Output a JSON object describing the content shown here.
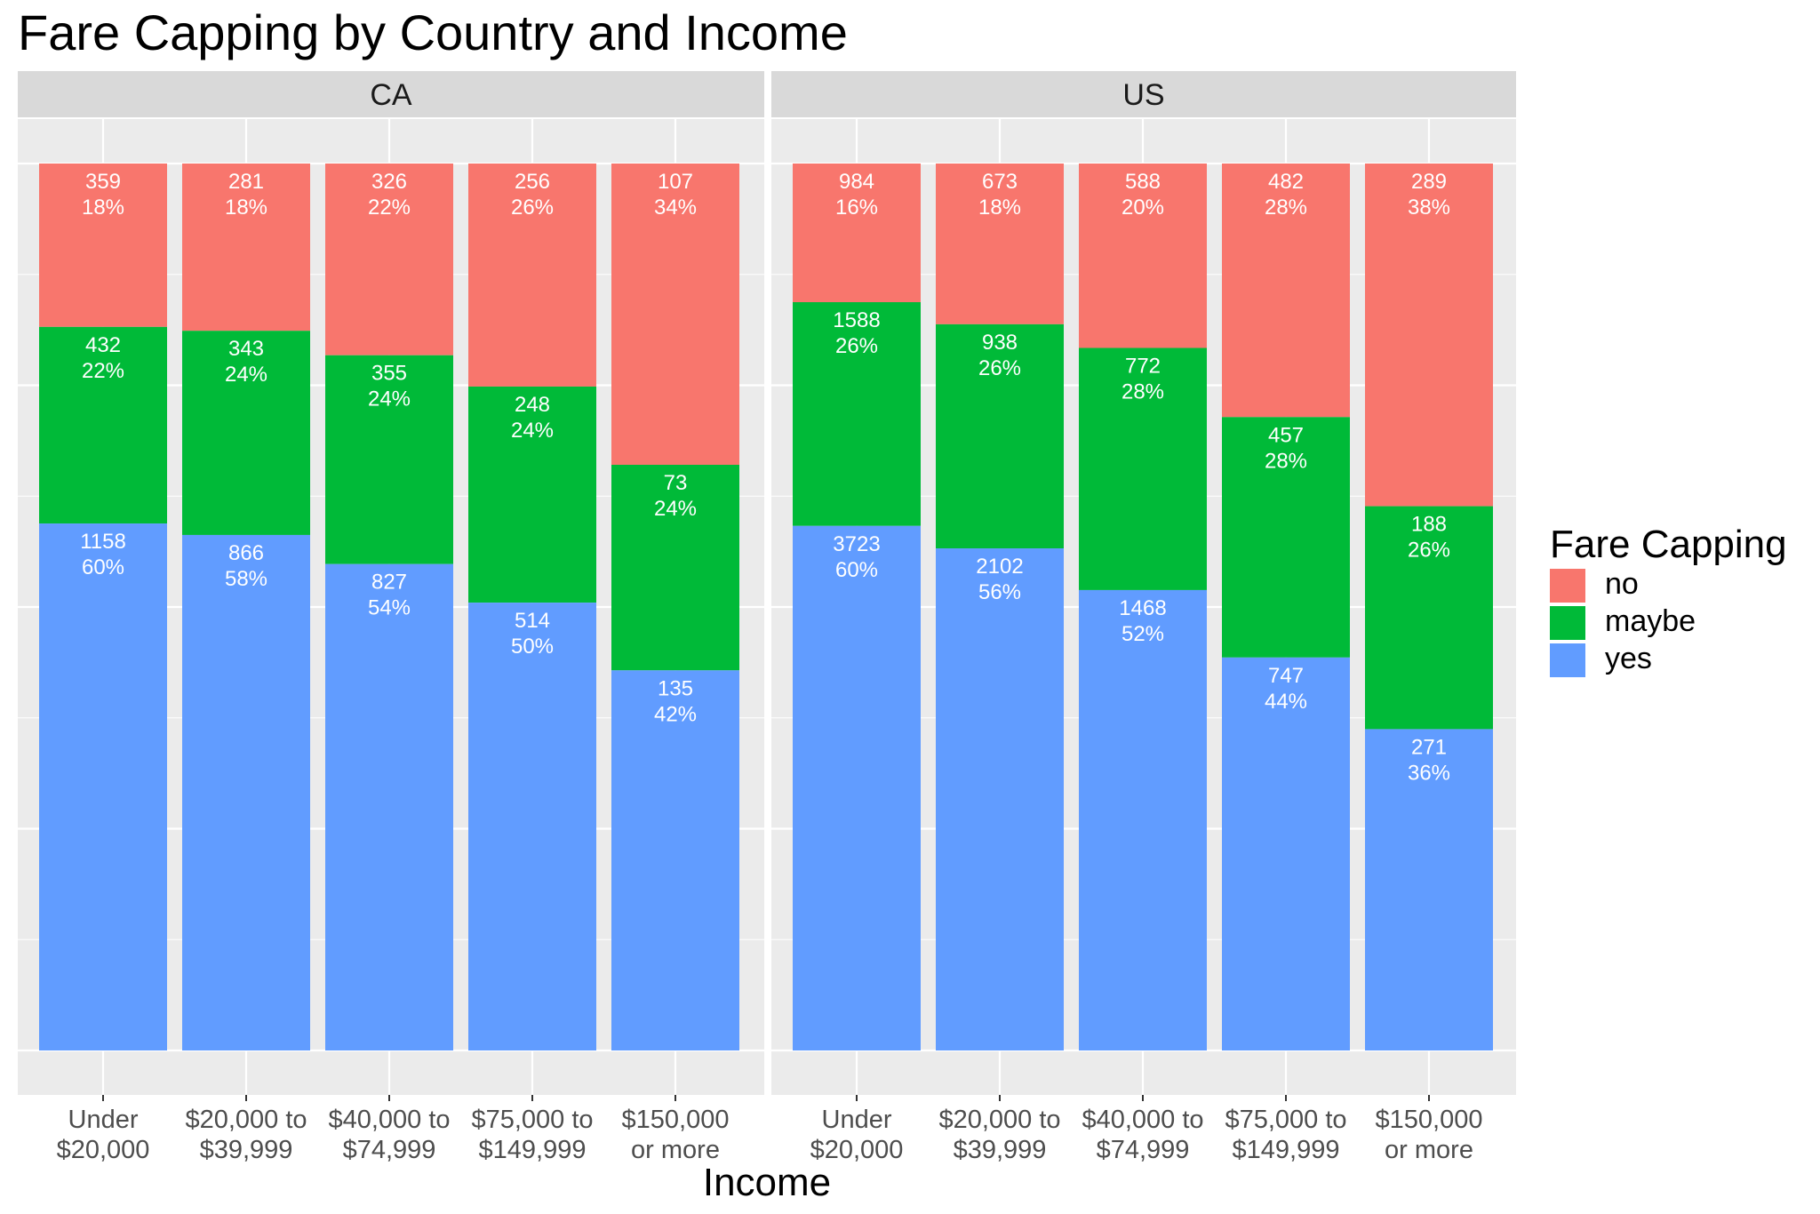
{
  "title": "Fare Capping by Country and Income",
  "chart_data": {
    "type": "bar",
    "stacked": true,
    "normalized": true,
    "xlabel": "Income",
    "ylabel": "",
    "categories": [
      "Under $20,000",
      "$20,000 to $39,999",
      "$40,000 to $74,999",
      "$75,000 to $149,999",
      "$150,000 or more"
    ],
    "category_lines": [
      [
        "Under",
        "$20,000"
      ],
      [
        "$20,000 to",
        "$39,999"
      ],
      [
        "$40,000 to",
        "$74,999"
      ],
      [
        "$75,000 to",
        "$149,999"
      ],
      [
        "$150,000",
        "or more"
      ]
    ],
    "legend": {
      "title": "Fare Capping",
      "position": "right",
      "items": [
        {
          "label": "no",
          "color": "#F8766D"
        },
        {
          "label": "maybe",
          "color": "#00BA38"
        },
        {
          "label": "yes",
          "color": "#619CFF"
        }
      ]
    },
    "stack_order_top_to_bottom": [
      "no",
      "maybe",
      "yes"
    ],
    "grid": true,
    "panels": [
      {
        "name": "CA",
        "series": [
          {
            "name": "no",
            "counts": [
              359,
              281,
              326,
              256,
              107
            ],
            "percent_labels": [
              "18%",
              "18%",
              "22%",
              "26%",
              "34%"
            ]
          },
          {
            "name": "maybe",
            "counts": [
              432,
              343,
              355,
              248,
              73
            ],
            "percent_labels": [
              "22%",
              "24%",
              "24%",
              "24%",
              "24%"
            ]
          },
          {
            "name": "yes",
            "counts": [
              1158,
              866,
              827,
              514,
              135
            ],
            "percent_labels": [
              "60%",
              "58%",
              "54%",
              "50%",
              "42%"
            ]
          }
        ]
      },
      {
        "name": "US",
        "series": [
          {
            "name": "no",
            "counts": [
              984,
              673,
              588,
              482,
              289
            ],
            "percent_labels": [
              "16%",
              "18%",
              "20%",
              "28%",
              "38%"
            ]
          },
          {
            "name": "maybe",
            "counts": [
              1588,
              938,
              772,
              457,
              188
            ],
            "percent_labels": [
              "26%",
              "26%",
              "28%",
              "28%",
              "26%"
            ]
          },
          {
            "name": "yes",
            "counts": [
              3723,
              2102,
              1468,
              747,
              271
            ],
            "percent_labels": [
              "60%",
              "56%",
              "52%",
              "44%",
              "36%"
            ]
          }
        ]
      }
    ]
  }
}
